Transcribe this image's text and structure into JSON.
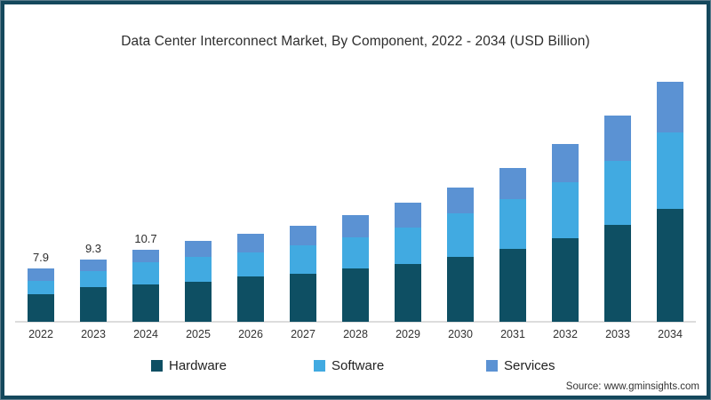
{
  "title": "Data Center Interconnect Market, By Component, 2022 - 2034 (USD Billion)",
  "source": "Source: www.gminsights.com",
  "frame": {
    "border_color": "#14485c",
    "background": "#ffffff"
  },
  "chart_data": {
    "type": "bar",
    "stacked": true,
    "title": "Data Center Interconnect Market, By Component, 2022 - 2034 (USD Billion)",
    "xlabel": "",
    "ylabel": "",
    "categories": [
      2022,
      2023,
      2024,
      2025,
      2026,
      2027,
      2028,
      2029,
      2030,
      2031,
      2032,
      2033,
      2034
    ],
    "series": [
      {
        "name": "Hardware",
        "color": "#0e4f63",
        "values": [
          4.1,
          5.1,
          5.6,
          6.0,
          6.7,
          7.1,
          7.9,
          8.6,
          9.6,
          10.8,
          12.4,
          14.4,
          16.8
        ]
      },
      {
        "name": "Software",
        "color": "#41aae1",
        "values": [
          2.0,
          2.4,
          3.2,
          3.7,
          3.6,
          4.2,
          4.7,
          5.4,
          6.5,
          7.4,
          8.4,
          9.5,
          11.4
        ]
      },
      {
        "name": "Services",
        "color": "#5b92d3",
        "values": [
          1.8,
          1.8,
          1.9,
          2.3,
          2.8,
          3.0,
          3.2,
          3.7,
          3.8,
          4.6,
          5.6,
          6.7,
          7.5
        ]
      }
    ],
    "totals": [
      7.9,
      9.3,
      10.7,
      12.0,
      13.1,
      14.3,
      15.8,
      17.7,
      19.9,
      22.8,
      26.4,
      30.6,
      35.7
    ],
    "total_labels": [
      "7.9",
      "9.3",
      "10.7",
      "",
      "",
      "",
      "",
      "",
      "",
      "",
      "",
      "",
      ""
    ],
    "ylim": [
      0,
      38
    ],
    "grid": false,
    "axis_line_color": "#dcdcdc",
    "legend_position": "bottom"
  }
}
